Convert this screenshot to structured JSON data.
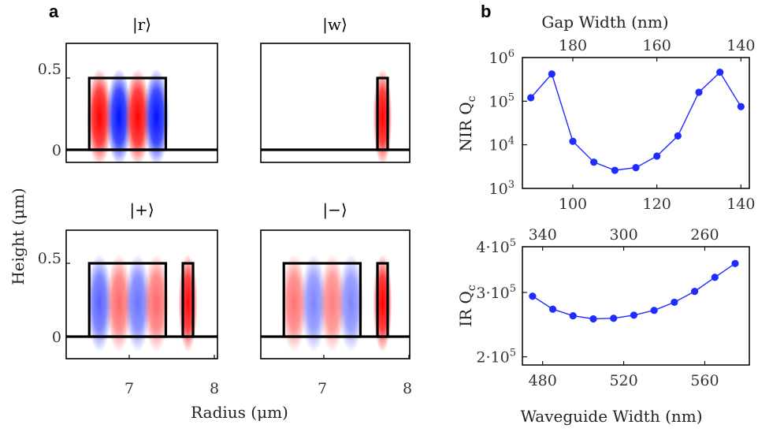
{
  "panel_labels": {
    "a": "a",
    "b": "b"
  },
  "panel_a": {
    "ylabel": "Height (μm)",
    "xlabel": "Radius (μm)",
    "y_ticks": [
      "0.5",
      "0"
    ],
    "x_ticks": [
      "7",
      "8"
    ],
    "states": [
      {
        "label": "|r⟩",
        "modes": [
          {
            "center": 6.65,
            "amp": 1
          },
          {
            "center": 6.88,
            "amp": -1
          },
          {
            "center": 7.1,
            "amp": 1
          },
          {
            "center": 7.32,
            "amp": -1
          }
        ]
      },
      {
        "label": "|w⟩",
        "modes": [
          {
            "center": 7.69,
            "amp": 1
          }
        ]
      },
      {
        "label": "|+⟩",
        "modes": [
          {
            "center": 6.65,
            "amp": -0.55
          },
          {
            "center": 6.88,
            "amp": 0.45
          },
          {
            "center": 7.1,
            "amp": -0.45
          },
          {
            "center": 7.32,
            "amp": 0.45
          },
          {
            "center": 7.69,
            "amp": 0.95
          }
        ]
      },
      {
        "label": "|−⟩",
        "modes": [
          {
            "center": 6.65,
            "amp": 0.4
          },
          {
            "center": 6.88,
            "amp": -0.35
          },
          {
            "center": 7.1,
            "amp": 0.35
          },
          {
            "center": 7.32,
            "amp": -0.35
          },
          {
            "center": 7.69,
            "amp": 1
          }
        ]
      }
    ]
  },
  "chart_data": [
    {
      "type": "line",
      "title": "",
      "ylabel": "NIR Q_c",
      "xlabel_top": "Gap Width (nm)",
      "y_scale": "log",
      "ylim": [
        1000,
        1000000
      ],
      "xlim": [
        88,
        142
      ],
      "x_ticks_bottom": [
        100,
        120,
        140
      ],
      "x_ticks_top": [
        "180",
        "160",
        "140"
      ],
      "y_tick_labels": [
        "10^6",
        "10^5",
        "10^4",
        "10^3"
      ],
      "x": [
        90,
        95,
        100,
        105,
        110,
        115,
        120,
        125,
        130,
        135,
        140
      ],
      "y": [
        120000,
        420000,
        12000,
        4000,
        2600,
        3000,
        5500,
        16000,
        160000,
        460000,
        75000
      ]
    },
    {
      "type": "line",
      "title": "",
      "ylabel": "IR Q_c",
      "xlabel": "Waveguide Width (nm)",
      "xlabel_top": "",
      "y_scale": "log",
      "ylim": [
        190000,
        400000
      ],
      "xlim": [
        470,
        582
      ],
      "x_ticks_bottom": [
        480,
        520,
        560
      ],
      "x_ticks_top": [
        "340",
        "300",
        "260"
      ],
      "y_tick_labels": [
        "4·10^5",
        "3·10^5",
        "2·10^5"
      ],
      "x": [
        475,
        485,
        495,
        505,
        515,
        525,
        535,
        545,
        555,
        565,
        575
      ],
      "y": [
        293000,
        270000,
        259000,
        254000,
        255000,
        260000,
        268000,
        282000,
        302000,
        330000,
        360000
      ]
    }
  ]
}
